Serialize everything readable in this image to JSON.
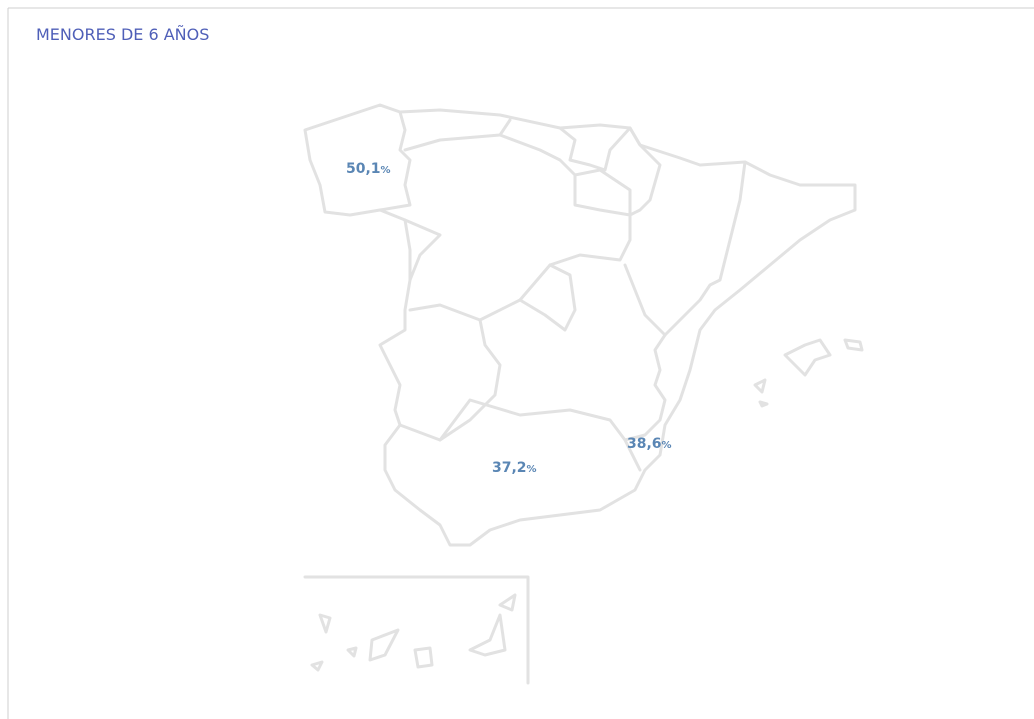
{
  "title": "MENORES DE 6 AÑOS",
  "regions": [
    {
      "value": "50,1",
      "unit": "%"
    },
    {
      "value": "37,2",
      "unit": "%"
    },
    {
      "value": "38,6",
      "unit": "%"
    }
  ]
}
